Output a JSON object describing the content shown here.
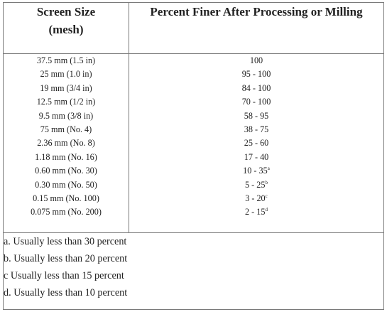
{
  "header": {
    "col1_line1": "Screen Size",
    "col1_line2": "(mesh)",
    "col2": "Percent Finer After Processing or Milling"
  },
  "rows": [
    {
      "size": "37.5 mm (1.5 in)",
      "finer": "100",
      "note": ""
    },
    {
      "size": "25 mm (1.0 in)",
      "finer": "95 - 100",
      "note": ""
    },
    {
      "size": "19 mm (3/4 in)",
      "finer": "84 - 100",
      "note": ""
    },
    {
      "size": "12.5 mm (1/2 in)",
      "finer": "70 - 100",
      "note": ""
    },
    {
      "size": "9.5 mm (3/8 in)",
      "finer": "58 - 95",
      "note": ""
    },
    {
      "size": "75 mm (No. 4)",
      "finer": "38 - 75",
      "note": ""
    },
    {
      "size": "2.36 mm (No. 8)",
      "finer": "25 - 60",
      "note": ""
    },
    {
      "size": "1.18 mm (No. 16)",
      "finer": "17 - 40",
      "note": ""
    },
    {
      "size": "0.60 mm (No. 30)",
      "finer": "10 - 35",
      "note": "a"
    },
    {
      "size": "0.30 mm (No. 50)",
      "finer": "5 - 25",
      "note": "b"
    },
    {
      "size": "0.15 mm (No. 100)",
      "finer": "3 - 20",
      "note": "c"
    },
    {
      "size": "0.075 mm (No. 200)",
      "finer": "2 - 15",
      "note": "d"
    }
  ],
  "footnotes": [
    "a. Usually less than 30 percent",
    "b. Usually less than 20 percent",
    "c Usually less than 15 percent",
    "d. Usually less than 10 percent"
  ]
}
